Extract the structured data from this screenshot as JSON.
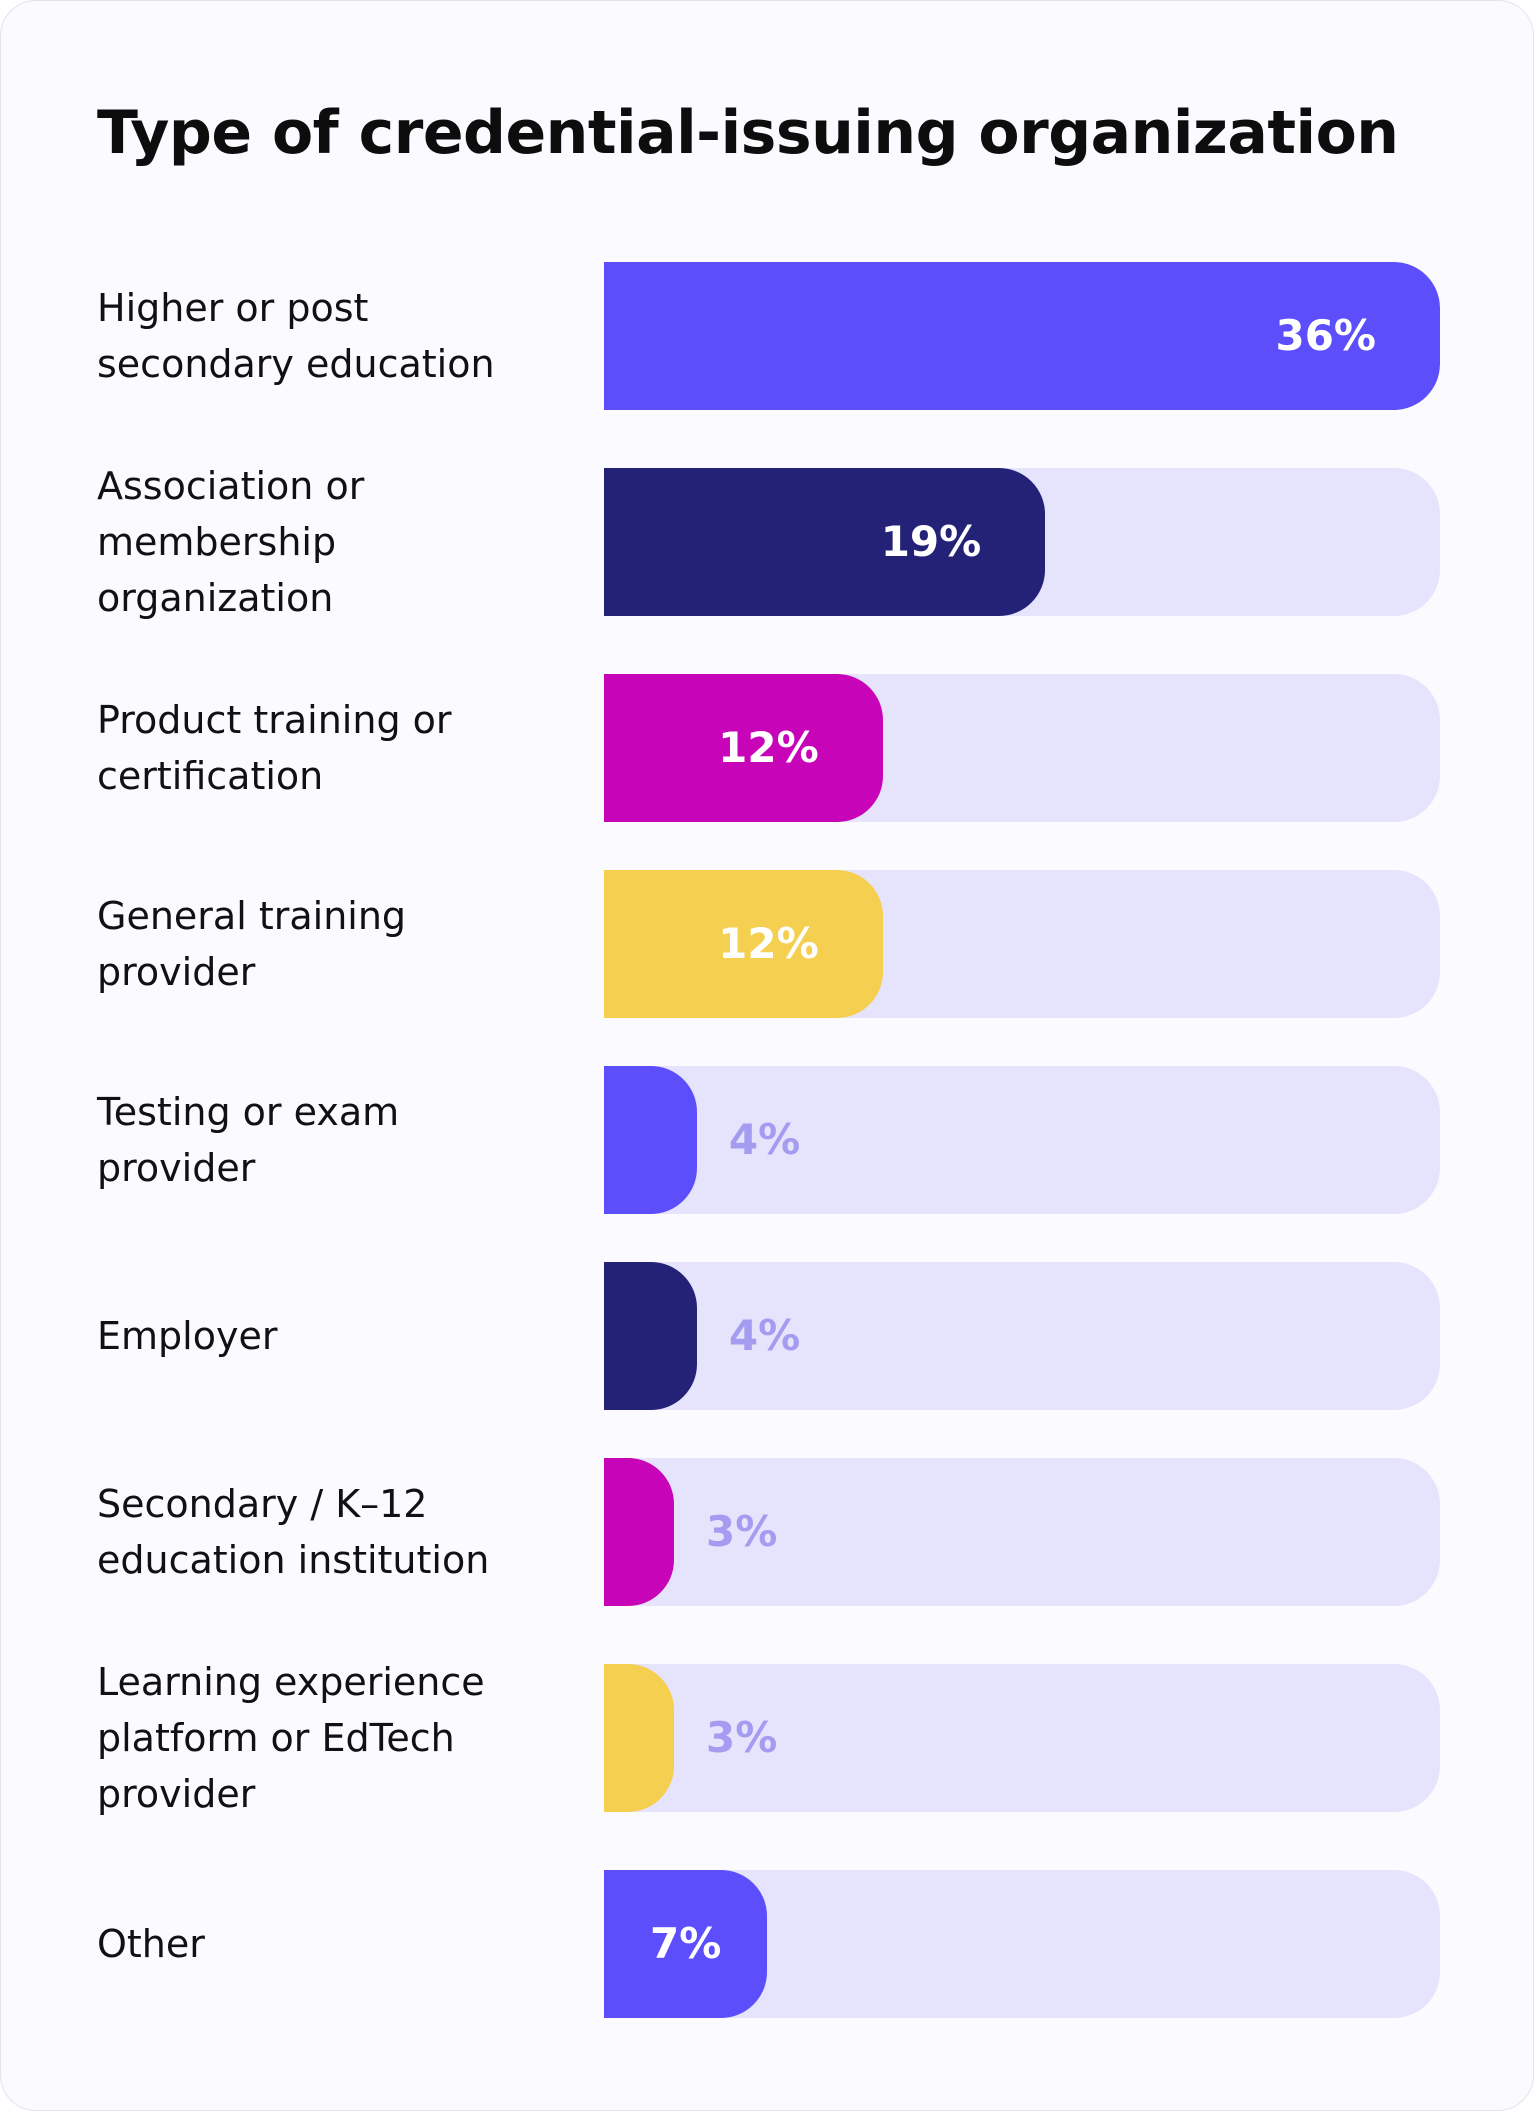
{
  "chart_data": {
    "type": "bar",
    "orientation": "horizontal",
    "title": "Type of credential-issuing organization",
    "categories": [
      "Higher or post secondary education",
      "Association or membership organization",
      "Product training or certification",
      "General training provider",
      "Testing or exam provider",
      "Employer",
      "Secondary / K–12 education institution",
      "Learning experience platform or EdTech provider",
      "Other"
    ],
    "values": [
      36,
      19,
      12,
      12,
      4,
      4,
      3,
      3,
      7
    ],
    "value_labels": [
      "36%",
      "19%",
      "12%",
      "12%",
      "4%",
      "4%",
      "3%",
      "3%",
      "7%"
    ],
    "bar_colors": [
      "#5d4efc",
      "#232277",
      "#c804b8",
      "#f5cf50",
      "#5d4efc",
      "#232277",
      "#c804b8",
      "#f5cf50",
      "#5d4efc"
    ],
    "track_color": "#e6e4fc",
    "label_inside_color": "#ffffff",
    "label_outside_color": "#a39cf0",
    "xlim": [
      0,
      36
    ],
    "grid": false,
    "legend": "none"
  }
}
